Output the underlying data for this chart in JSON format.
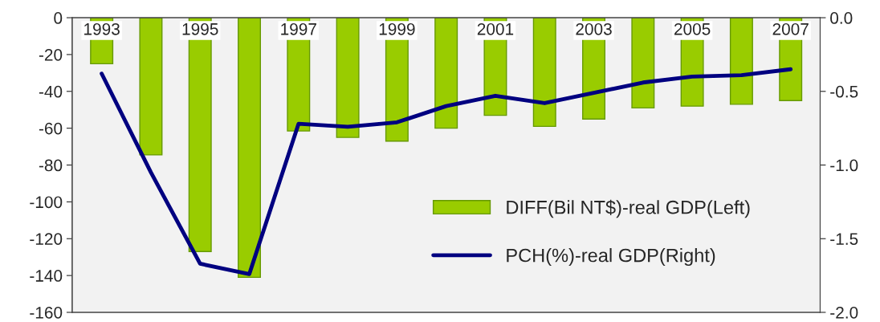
{
  "chart_data": {
    "type": "bar",
    "categories": [
      "1993",
      null,
      "1995",
      null,
      "1997",
      null,
      "1999",
      null,
      "2001",
      null,
      "2003",
      null,
      "2005",
      null,
      "2007"
    ],
    "series": [
      {
        "name": "DIFF(Bil NT$)-real GDP(Left)",
        "color": "#99cc00",
        "values": [
          -25,
          -74.5,
          -127,
          -141,
          -61.5,
          -65,
          -67,
          -60,
          -53,
          -59,
          -55,
          -49,
          -48,
          -47,
          -45
        ]
      },
      {
        "name": "PCH(%)-real GDP(Right)",
        "type": "line",
        "axis": "y2",
        "color": "#000080",
        "values": [
          -0.38,
          -1.05,
          -1.67,
          -1.74,
          -0.72,
          -0.74,
          -0.71,
          -0.6,
          -0.53,
          -0.58,
          -0.51,
          -0.44,
          -0.4,
          -0.39,
          -0.35
        ]
      }
    ],
    "ylim": [
      -160,
      0
    ],
    "yticks": [
      -160,
      -140,
      -120,
      -100,
      -80,
      -60,
      -40,
      -20,
      0
    ],
    "y2lim": [
      -2.0,
      0.0
    ],
    "y2ticks": [
      {
        "value": -2.0,
        "label": "-2.0"
      },
      {
        "value": -1.5,
        "label": "-1.5"
      },
      {
        "value": -1.0,
        "label": "-1.0"
      },
      {
        "value": -0.5,
        "label": "-0.5"
      },
      {
        "value": 0.0,
        "label": "0.0"
      }
    ],
    "legend": "bottom right",
    "grid": false
  }
}
